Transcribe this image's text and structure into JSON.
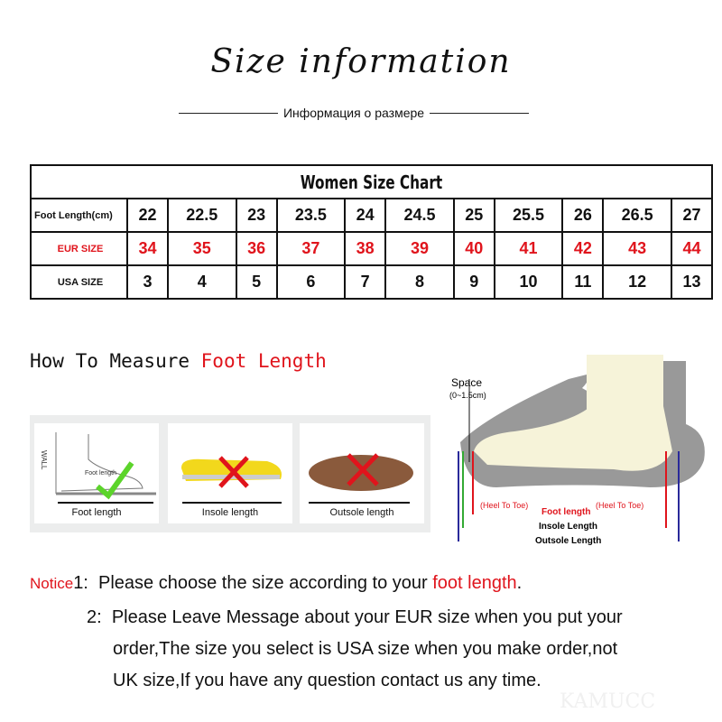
{
  "header": {
    "title": "Size information",
    "subtitle": "Информация о размере"
  },
  "table": {
    "title": "Women Size Chart",
    "rows": [
      {
        "label": "Foot Length(cm)",
        "values": [
          "22",
          "22.5",
          "23",
          "23.5",
          "24",
          "24.5",
          "25",
          "25.5",
          "26",
          "26.5",
          "27"
        ]
      },
      {
        "label": "EUR SIZE",
        "values": [
          "34",
          "35",
          "36",
          "37",
          "38",
          "39",
          "40",
          "41",
          "42",
          "43",
          "44"
        ]
      },
      {
        "label": "USA SIZE",
        "values": [
          "3",
          "4",
          "5",
          "6",
          "7",
          "8",
          "9",
          "10",
          "11",
          "12",
          "13"
        ]
      }
    ]
  },
  "measure": {
    "heading_a": "How To Measure ",
    "heading_b": "Foot Length",
    "cards": [
      {
        "label": "Foot length",
        "wall": "WALL",
        "inner": "Foot length",
        "mark": "check"
      },
      {
        "label": "Insole length",
        "mark": "cross"
      },
      {
        "label": "Outsole length",
        "mark": "cross"
      }
    ]
  },
  "diagram": {
    "space": "Space",
    "space_range": "(0~1.5cm)",
    "heel_to_toe": "(Heel To Toe)",
    "foot_length": "Foot length",
    "insole": "Insole Length",
    "outsole": "Outsole Length"
  },
  "notice": {
    "label": "Notice",
    "n1": "1:",
    "line1_a": "Please choose the size according to your ",
    "line1_b": "foot length",
    "line1_c": ".",
    "n2": "2:",
    "line2": "Please Leave Message about your EUR size when you put your",
    "line3": "order,The size you select is USA size when you make order,not",
    "line4": "UK size,If you have any question  contact us any time."
  },
  "watermark": "KAMUCC",
  "colors": {
    "accent": "#e0141c"
  }
}
